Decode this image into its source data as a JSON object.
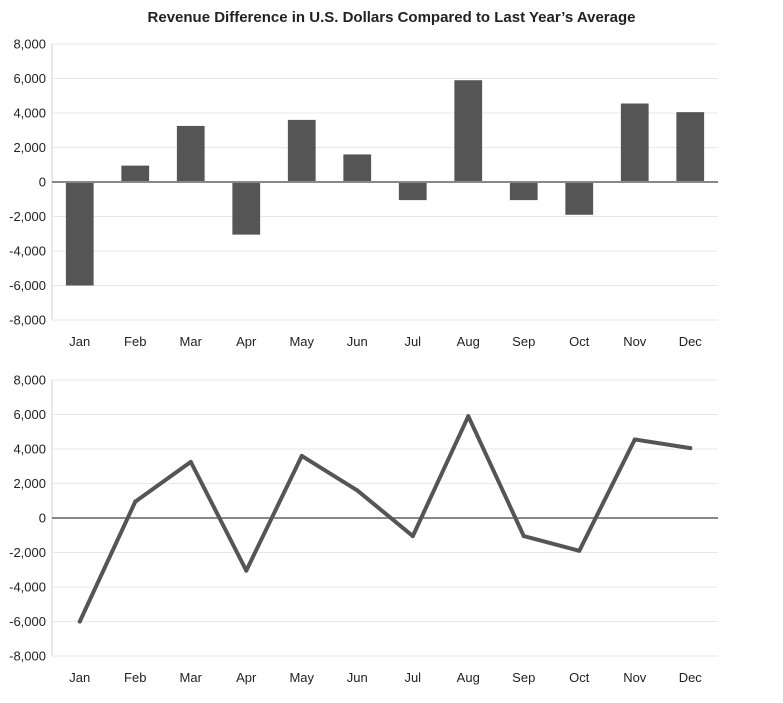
{
  "chart_data": [
    {
      "type": "bar",
      "title": "Revenue Difference in U.S. Dollars Compared to Last Year’s Average",
      "categories": [
        "Jan",
        "Feb",
        "Mar",
        "Apr",
        "May",
        "Jun",
        "Jul",
        "Aug",
        "Sep",
        "Oct",
        "Nov",
        "Dec"
      ],
      "values": [
        -6000,
        950,
        3250,
        -3050,
        3600,
        1600,
        -1050,
        5900,
        -1050,
        -1900,
        4550,
        4050
      ],
      "ylim": [
        -8000,
        8000
      ],
      "yticks": [
        "8,000",
        "6,000",
        "4,000",
        "2,000",
        "0",
        "-2,000",
        "-4,000",
        "-6,000",
        "-8,000"
      ],
      "grid": true,
      "color": "#555555"
    },
    {
      "type": "line",
      "categories": [
        "Jan",
        "Feb",
        "Mar",
        "Apr",
        "May",
        "Jun",
        "Jul",
        "Aug",
        "Sep",
        "Oct",
        "Nov",
        "Dec"
      ],
      "values": [
        -6000,
        950,
        3250,
        -3050,
        3600,
        1600,
        -1050,
        5900,
        -1050,
        -1900,
        4550,
        4050
      ],
      "ylim": [
        -8000,
        8000
      ],
      "yticks": [
        "8,000",
        "6,000",
        "4,000",
        "2,000",
        "0",
        "-2,000",
        "-4,000",
        "-6,000",
        "-8,000"
      ],
      "grid": true,
      "color": "#555555"
    }
  ]
}
